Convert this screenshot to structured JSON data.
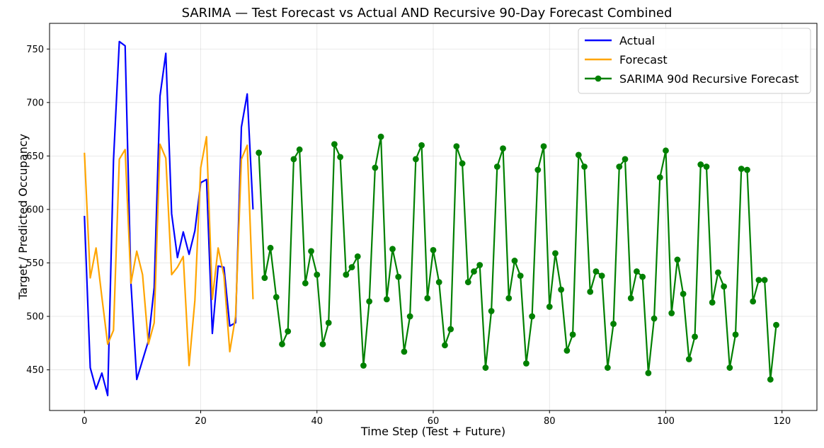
{
  "chart_data": {
    "type": "line",
    "title": "SARIMA — Test Forecast vs Actual AND Recursive 90-Day Forecast Combined",
    "xlabel": "Time Step (Test + Future)",
    "ylabel": "Target / Predicted Occupancy",
    "xlim": [
      -6,
      126
    ],
    "ylim": [
      412,
      774
    ],
    "xticks": [
      0,
      20,
      40,
      60,
      80,
      100,
      120
    ],
    "yticks": [
      450,
      500,
      550,
      600,
      650,
      700,
      750
    ],
    "grid": true,
    "legend_position": "top-right",
    "series": [
      {
        "name": "Actual",
        "color": "#0000ff",
        "marker": false,
        "x": [
          0,
          1,
          2,
          3,
          4,
          5,
          6,
          7,
          8,
          9,
          10,
          11,
          12,
          13,
          14,
          15,
          16,
          17,
          18,
          19,
          20,
          21,
          22,
          23,
          24,
          25,
          26,
          27,
          28,
          29
        ],
        "values": [
          594,
          452,
          432,
          447,
          426,
          646,
          757,
          753,
          531,
          441,
          459,
          477,
          527,
          706,
          746,
          596,
          555,
          579,
          558,
          580,
          625,
          628,
          484,
          547,
          546,
          491,
          494,
          677,
          708,
          600
        ]
      },
      {
        "name": "Forecast",
        "color": "#ffa500",
        "marker": false,
        "x": [
          0,
          1,
          2,
          3,
          4,
          5,
          6,
          7,
          8,
          9,
          10,
          11,
          12,
          13,
          14,
          15,
          16,
          17,
          18,
          19,
          20,
          21,
          22,
          23,
          24,
          25,
          26,
          27,
          28,
          29
        ],
        "values": [
          653,
          536,
          564,
          518,
          474,
          487,
          647,
          656,
          531,
          561,
          539,
          474,
          494,
          661,
          648,
          539,
          546,
          556,
          454,
          515,
          639,
          668,
          516,
          564,
          538,
          467,
          500,
          647,
          660,
          516
        ]
      },
      {
        "name": "SARIMA 90d Recursive Forecast",
        "color": "#008000",
        "marker": true,
        "x": [
          30,
          31,
          32,
          33,
          34,
          35,
          36,
          37,
          38,
          39,
          40,
          41,
          42,
          43,
          44,
          45,
          46,
          47,
          48,
          49,
          50,
          51,
          52,
          53,
          54,
          55,
          56,
          57,
          58,
          59,
          60,
          61,
          62,
          63,
          64,
          65,
          66,
          67,
          68,
          69,
          70,
          71,
          72,
          73,
          74,
          75,
          76,
          77,
          78,
          79,
          80,
          81,
          82,
          83,
          84,
          85,
          86,
          87,
          88,
          89,
          90,
          91,
          92,
          93,
          94,
          95,
          96,
          97,
          98,
          99,
          100,
          101,
          102,
          103,
          104,
          105,
          106,
          107,
          108,
          109,
          110,
          111,
          112,
          113,
          114,
          115,
          116,
          117,
          118,
          119
        ],
        "values": [
          653,
          536,
          564,
          518,
          474,
          486,
          647,
          656,
          531,
          561,
          539,
          474,
          494,
          661,
          649,
          539,
          546,
          556,
          454,
          514,
          639,
          668,
          516,
          563,
          537,
          467,
          500,
          647,
          660,
          517,
          562,
          532,
          473,
          488,
          659,
          643,
          532,
          542,
          548,
          452,
          505,
          640,
          657,
          517,
          552,
          538,
          456,
          500,
          637,
          659,
          509,
          559,
          525,
          468,
          483,
          651,
          640,
          523,
          542,
          538,
          452,
          493,
          640,
          647,
          517,
          542,
          537,
          447,
          498,
          630,
          655,
          503,
          553,
          521,
          460,
          481,
          642,
          640,
          513,
          541,
          528,
          452,
          483,
          638,
          637,
          514,
          534,
          534,
          441,
          492
        ]
      }
    ]
  }
}
